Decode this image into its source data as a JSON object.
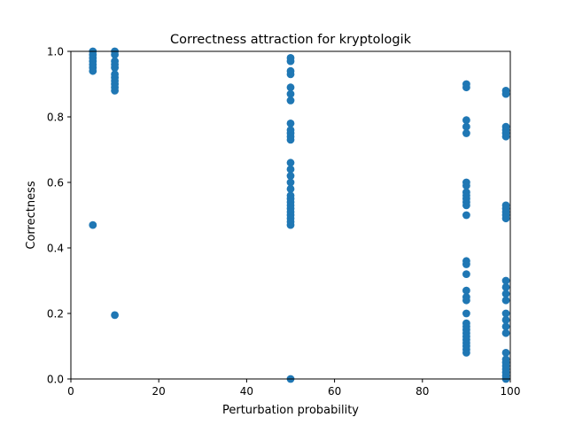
{
  "chart_data": {
    "type": "scatter",
    "title": "Correctness attraction for kryptologik",
    "xlabel": "Perturbation probability",
    "ylabel": "Correctness",
    "xlim": [
      0,
      100
    ],
    "ylim": [
      0,
      1.0
    ],
    "xticks": [
      0,
      20,
      40,
      60,
      80,
      100
    ],
    "xtick_labels": [
      "0",
      "20",
      "40",
      "60",
      "80",
      "100"
    ],
    "yticks": [
      0,
      0.2,
      0.4,
      0.6,
      0.8,
      1.0
    ],
    "ytick_labels": [
      "0.0",
      "0.2",
      "0.4",
      "0.6",
      "0.8",
      "1.0"
    ],
    "grid": false,
    "marker_color": "#1f77b4",
    "series": [
      {
        "points": [
          {
            "x": 5,
            "y": 0.94
          },
          {
            "x": 5,
            "y": 0.95
          },
          {
            "x": 5,
            "y": 0.96
          },
          {
            "x": 5,
            "y": 0.97
          },
          {
            "x": 5,
            "y": 0.98
          },
          {
            "x": 5,
            "y": 0.99
          },
          {
            "x": 5,
            "y": 1.0
          },
          {
            "x": 5,
            "y": 0.47
          },
          {
            "x": 10,
            "y": 1.0
          },
          {
            "x": 10,
            "y": 0.99
          },
          {
            "x": 10,
            "y": 0.97
          },
          {
            "x": 10,
            "y": 0.96
          },
          {
            "x": 10,
            "y": 0.95
          },
          {
            "x": 10,
            "y": 0.93
          },
          {
            "x": 10,
            "y": 0.92
          },
          {
            "x": 10,
            "y": 0.91
          },
          {
            "x": 10,
            "y": 0.9
          },
          {
            "x": 10,
            "y": 0.89
          },
          {
            "x": 10,
            "y": 0.88
          },
          {
            "x": 10,
            "y": 0.195
          },
          {
            "x": 50,
            "y": 0.98
          },
          {
            "x": 50,
            "y": 0.97
          },
          {
            "x": 50,
            "y": 0.94
          },
          {
            "x": 50,
            "y": 0.93
          },
          {
            "x": 50,
            "y": 0.89
          },
          {
            "x": 50,
            "y": 0.87
          },
          {
            "x": 50,
            "y": 0.85
          },
          {
            "x": 50,
            "y": 0.78
          },
          {
            "x": 50,
            "y": 0.76
          },
          {
            "x": 50,
            "y": 0.75
          },
          {
            "x": 50,
            "y": 0.74
          },
          {
            "x": 50,
            "y": 0.73
          },
          {
            "x": 50,
            "y": 0.66
          },
          {
            "x": 50,
            "y": 0.64
          },
          {
            "x": 50,
            "y": 0.62
          },
          {
            "x": 50,
            "y": 0.6
          },
          {
            "x": 50,
            "y": 0.58
          },
          {
            "x": 50,
            "y": 0.56
          },
          {
            "x": 50,
            "y": 0.55
          },
          {
            "x": 50,
            "y": 0.54
          },
          {
            "x": 50,
            "y": 0.53
          },
          {
            "x": 50,
            "y": 0.52
          },
          {
            "x": 50,
            "y": 0.51
          },
          {
            "x": 50,
            "y": 0.5
          },
          {
            "x": 50,
            "y": 0.49
          },
          {
            "x": 50,
            "y": 0.48
          },
          {
            "x": 50,
            "y": 0.47
          },
          {
            "x": 50,
            "y": 0.0
          },
          {
            "x": 90,
            "y": 0.9
          },
          {
            "x": 90,
            "y": 0.89
          },
          {
            "x": 90,
            "y": 0.79
          },
          {
            "x": 90,
            "y": 0.77
          },
          {
            "x": 90,
            "y": 0.75
          },
          {
            "x": 90,
            "y": 0.6
          },
          {
            "x": 90,
            "y": 0.59
          },
          {
            "x": 90,
            "y": 0.57
          },
          {
            "x": 90,
            "y": 0.56
          },
          {
            "x": 90,
            "y": 0.55
          },
          {
            "x": 90,
            "y": 0.54
          },
          {
            "x": 90,
            "y": 0.53
          },
          {
            "x": 90,
            "y": 0.5
          },
          {
            "x": 90,
            "y": 0.36
          },
          {
            "x": 90,
            "y": 0.35
          },
          {
            "x": 90,
            "y": 0.32
          },
          {
            "x": 90,
            "y": 0.27
          },
          {
            "x": 90,
            "y": 0.25
          },
          {
            "x": 90,
            "y": 0.24
          },
          {
            "x": 90,
            "y": 0.2
          },
          {
            "x": 90,
            "y": 0.17
          },
          {
            "x": 90,
            "y": 0.16
          },
          {
            "x": 90,
            "y": 0.15
          },
          {
            "x": 90,
            "y": 0.14
          },
          {
            "x": 90,
            "y": 0.13
          },
          {
            "x": 90,
            "y": 0.12
          },
          {
            "x": 90,
            "y": 0.11
          },
          {
            "x": 90,
            "y": 0.1
          },
          {
            "x": 90,
            "y": 0.09
          },
          {
            "x": 90,
            "y": 0.08
          },
          {
            "x": 99,
            "y": 0.88
          },
          {
            "x": 99,
            "y": 0.87
          },
          {
            "x": 99,
            "y": 0.77
          },
          {
            "x": 99,
            "y": 0.76
          },
          {
            "x": 99,
            "y": 0.75
          },
          {
            "x": 99,
            "y": 0.74
          },
          {
            "x": 99,
            "y": 0.53
          },
          {
            "x": 99,
            "y": 0.52
          },
          {
            "x": 99,
            "y": 0.51
          },
          {
            "x": 99,
            "y": 0.5
          },
          {
            "x": 99,
            "y": 0.49
          },
          {
            "x": 99,
            "y": 0.3
          },
          {
            "x": 99,
            "y": 0.28
          },
          {
            "x": 99,
            "y": 0.26
          },
          {
            "x": 99,
            "y": 0.24
          },
          {
            "x": 99,
            "y": 0.2
          },
          {
            "x": 99,
            "y": 0.18
          },
          {
            "x": 99,
            "y": 0.16
          },
          {
            "x": 99,
            "y": 0.14
          },
          {
            "x": 99,
            "y": 0.08
          },
          {
            "x": 99,
            "y": 0.06
          },
          {
            "x": 99,
            "y": 0.05
          },
          {
            "x": 99,
            "y": 0.04
          },
          {
            "x": 99,
            "y": 0.03
          },
          {
            "x": 99,
            "y": 0.02
          },
          {
            "x": 99,
            "y": 0.01
          },
          {
            "x": 99,
            "y": 0.0
          }
        ]
      }
    ]
  }
}
